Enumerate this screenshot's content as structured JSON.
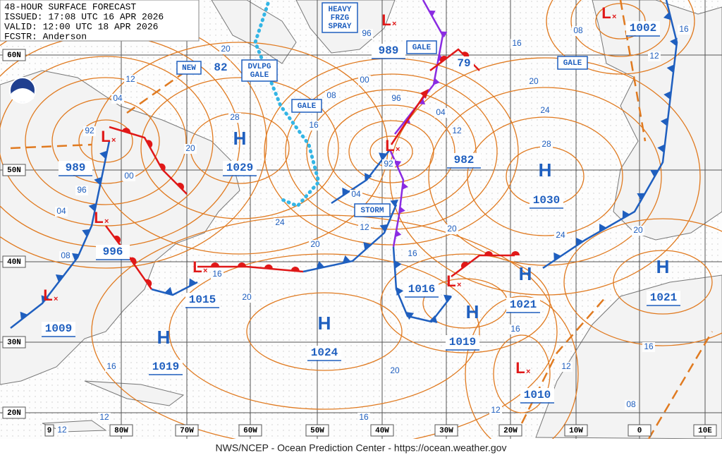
{
  "header": {
    "lines": [
      "48-HOUR SURFACE FORECAST",
      "ISSUED: 17:08 UTC 16 APR 2026",
      "VALID:  12:00 UTC 18 APR 2026",
      "FCSTR:  Anderson"
    ]
  },
  "lat_labels": [
    "60N",
    "50N",
    "40N",
    "30N",
    "20N"
  ],
  "lon_labels": [
    "9",
    "80W",
    "70W",
    "60W",
    "50W",
    "40W",
    "30W",
    "20W",
    "10W",
    "0",
    "10E"
  ],
  "pressure_centers": [
    {
      "symbol": "L",
      "value": "989"
    },
    {
      "symbol": "L",
      "value": "996"
    },
    {
      "symbol": "L",
      "value": "1009"
    },
    {
      "symbol": "L",
      "value": "1015"
    },
    {
      "symbol": "H",
      "value": "1019"
    },
    {
      "symbol": "H",
      "value": "1029"
    },
    {
      "symbol": "H",
      "value": "1024"
    },
    {
      "symbol": "L",
      "value": "982"
    },
    {
      "symbol": "L",
      "value": "989"
    },
    {
      "symbol": "L",
      "value": "1016"
    },
    {
      "symbol": "H",
      "value": "1021"
    },
    {
      "symbol": "H",
      "value": "1019"
    },
    {
      "symbol": "H",
      "value": "1030"
    },
    {
      "symbol": "H",
      "value": "1021"
    },
    {
      "symbol": "L",
      "value": "1010"
    },
    {
      "symbol": "L",
      "value": "1002"
    }
  ],
  "other_values": [
    "82",
    "79"
  ],
  "warnings": [
    {
      "lines": [
        "HEAVY",
        "FRZG",
        "SPRAY"
      ]
    },
    {
      "lines": [
        "DVLPG",
        "GALE"
      ]
    },
    {
      "lines": [
        "GALE"
      ]
    },
    {
      "lines": [
        "GALE"
      ]
    },
    {
      "lines": [
        "GALE"
      ]
    },
    {
      "lines": [
        "STORM"
      ]
    },
    {
      "lines": [
        "NEW"
      ]
    }
  ],
  "isobar_labels": [
    "20",
    "12",
    "04",
    "00",
    "20",
    "28",
    "04",
    "96",
    "08",
    "24",
    "20",
    "16",
    "20",
    "16",
    "08",
    "00",
    "96",
    "04",
    "12",
    "04",
    "12",
    "20",
    "16",
    "16",
    "20",
    "16",
    "16",
    "12",
    "12",
    "12",
    "12",
    "08",
    "16",
    "20",
    "24",
    "28",
    "24",
    "20",
    "16",
    "08",
    "12",
    "16",
    "92",
    "92",
    "96"
  ],
  "footer": "NWS/NCEP - Ocean Prediction Center - https://ocean.weather.gov"
}
